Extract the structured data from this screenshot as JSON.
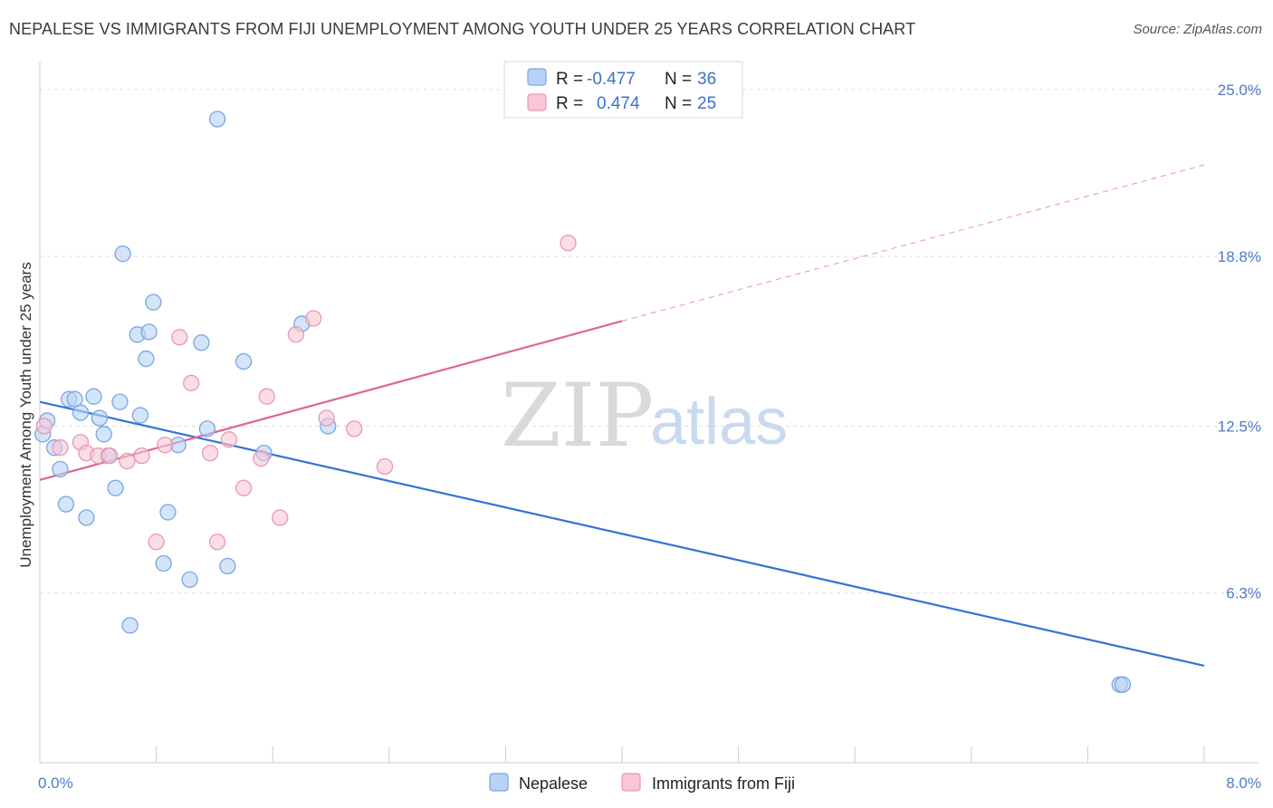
{
  "title": "NEPALESE VS IMMIGRANTS FROM FIJI UNEMPLOYMENT AMONG YOUTH UNDER 25 YEARS CORRELATION CHART",
  "source": "Source: ZipAtlas.com",
  "watermark": {
    "zip": "ZIP",
    "atlas": "atlas"
  },
  "colors": {
    "nepalese_fill": "#b8d2f5",
    "nepalese_stroke": "#7aa6e0",
    "nepalese_line": "#3374d4",
    "fiji_fill": "#f8c6d6",
    "fiji_stroke": "#e898b2",
    "fiji_line": "#e06690"
  },
  "legend": {
    "rows": [
      {
        "r_label": "R =",
        "r_value": "-0.477",
        "n_label": "N =",
        "n_value": "36"
      },
      {
        "r_label": "R =",
        "r_value": "0.474",
        "n_label": "N =",
        "n_value": "25"
      }
    ]
  },
  "bottom_legend": [
    "Nepalese",
    "Immigrants from Fiji"
  ],
  "chart_data": {
    "type": "scatter",
    "title": "NEPALESE VS IMMIGRANTS FROM FIJI UNEMPLOYMENT AMONG YOUTH UNDER 25 YEARS CORRELATION CHART",
    "xlabel": "",
    "ylabel": "Unemployment Among Youth under 25 years",
    "xlim": [
      0,
      8.0
    ],
    "ylim": [
      0,
      25.7
    ],
    "x_tick_labels": [
      {
        "value": 0,
        "label": "0.0%"
      },
      {
        "value": 8.0,
        "label": "8.0%"
      }
    ],
    "y_tick_labels": [
      {
        "value": 6.3,
        "label": "6.3%"
      },
      {
        "value": 12.5,
        "label": "12.5%"
      },
      {
        "value": 18.8,
        "label": "18.8%"
      },
      {
        "value": 25.0,
        "label": "25.0%"
      }
    ],
    "grid": true,
    "legend_position": "top-center",
    "series": [
      {
        "name": "Nepalese",
        "points": [
          [
            0.02,
            12.2
          ],
          [
            0.05,
            12.7
          ],
          [
            0.1,
            11.7
          ],
          [
            0.14,
            10.9
          ],
          [
            0.18,
            9.6
          ],
          [
            0.2,
            13.5
          ],
          [
            0.24,
            13.5
          ],
          [
            0.28,
            13.0
          ],
          [
            0.32,
            9.1
          ],
          [
            0.37,
            13.6
          ],
          [
            0.41,
            12.8
          ],
          [
            0.44,
            12.2
          ],
          [
            0.47,
            11.4
          ],
          [
            0.52,
            10.2
          ],
          [
            0.55,
            13.4
          ],
          [
            0.57,
            18.9
          ],
          [
            0.62,
            5.1
          ],
          [
            0.67,
            15.9
          ],
          [
            0.69,
            12.9
          ],
          [
            0.73,
            15.0
          ],
          [
            0.75,
            16.0
          ],
          [
            0.78,
            17.1
          ],
          [
            0.85,
            7.4
          ],
          [
            0.88,
            9.3
          ],
          [
            0.95,
            11.8
          ],
          [
            1.03,
            6.8
          ],
          [
            1.11,
            15.6
          ],
          [
            1.15,
            12.4
          ],
          [
            1.22,
            23.9
          ],
          [
            1.29,
            7.3
          ],
          [
            1.4,
            14.9
          ],
          [
            1.54,
            11.5
          ],
          [
            1.8,
            16.3
          ],
          [
            1.98,
            12.5
          ],
          [
            7.42,
            2.9
          ],
          [
            7.44,
            2.9
          ]
        ],
        "trend": {
          "x": [
            0,
            8.0
          ],
          "y": [
            13.4,
            3.6
          ]
        }
      },
      {
        "name": "Immigrants from Fiji",
        "points": [
          [
            0.03,
            12.5
          ],
          [
            0.14,
            11.7
          ],
          [
            0.28,
            11.9
          ],
          [
            0.32,
            11.5
          ],
          [
            0.4,
            11.4
          ],
          [
            0.48,
            11.4
          ],
          [
            0.6,
            11.2
          ],
          [
            0.7,
            11.4
          ],
          [
            0.8,
            8.2
          ],
          [
            0.86,
            11.8
          ],
          [
            0.96,
            15.8
          ],
          [
            1.04,
            14.1
          ],
          [
            1.17,
            11.5
          ],
          [
            1.22,
            8.2
          ],
          [
            1.3,
            12.0
          ],
          [
            1.4,
            10.2
          ],
          [
            1.52,
            11.3
          ],
          [
            1.56,
            13.6
          ],
          [
            1.65,
            9.1
          ],
          [
            1.76,
            15.9
          ],
          [
            1.88,
            16.5
          ],
          [
            1.97,
            12.8
          ],
          [
            2.16,
            12.4
          ],
          [
            2.37,
            11.0
          ],
          [
            3.63,
            19.3
          ]
        ],
        "trend": {
          "x": [
            0,
            4.0
          ],
          "y": [
            10.5,
            16.4
          ],
          "dashed_extension": {
            "x": [
              4.0,
              8.0
            ],
            "y": [
              16.4,
              22.2
            ]
          }
        }
      }
    ]
  }
}
